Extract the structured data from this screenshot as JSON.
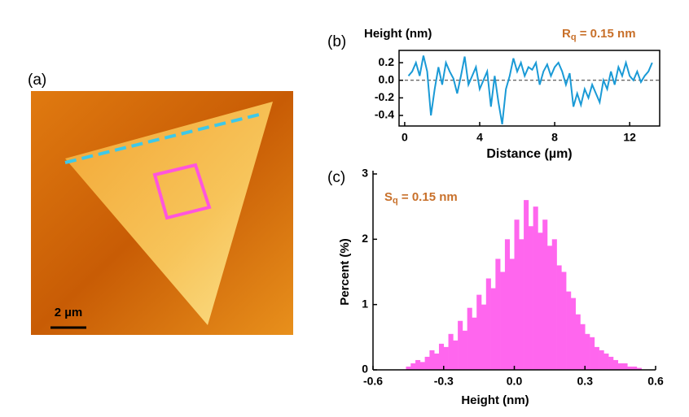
{
  "panel_a": {
    "label": "(a)",
    "scale_bar": "2 µm"
  },
  "chart_data": [
    {
      "type": "line",
      "panel": "(b)",
      "title": "Height (nm)",
      "x_label": "Distance (µm)",
      "annotation": {
        "symbol": "R",
        "subscript": "q",
        "text": " = 0.15 nm"
      },
      "color": "#1a9ad6",
      "reference_line": 0,
      "xlim": [
        -0.3,
        13.6
      ],
      "xticks": [
        0,
        4,
        8,
        12
      ],
      "ylim": [
        -0.52,
        0.34
      ],
      "yticks": [
        0.2,
        {
          "value": 0,
          "label": "0.0"
        },
        -0.2,
        -0.4
      ],
      "x": [
        0.2,
        0.4,
        0.6,
        0.8,
        1.0,
        1.2,
        1.4,
        1.6,
        1.8,
        2.0,
        2.2,
        2.4,
        2.6,
        2.8,
        3.0,
        3.2,
        3.4,
        3.6,
        3.8,
        4.0,
        4.2,
        4.4,
        4.6,
        4.8,
        5.0,
        5.2,
        5.4,
        5.6,
        5.8,
        6.0,
        6.2,
        6.4,
        6.6,
        6.8,
        7.0,
        7.2,
        7.4,
        7.6,
        7.8,
        8.0,
        8.2,
        8.4,
        8.6,
        8.8,
        9.0,
        9.2,
        9.4,
        9.6,
        9.8,
        10.0,
        10.2,
        10.4,
        10.6,
        10.8,
        11.0,
        11.2,
        11.4,
        11.6,
        11.8,
        12.0,
        12.2,
        12.4,
        12.6,
        12.8,
        13.0,
        13.2
      ],
      "values": [
        0.05,
        0.1,
        0.2,
        0.05,
        0.28,
        0.1,
        -0.4,
        -0.1,
        0.15,
        -0.05,
        0.2,
        0.1,
        0.02,
        -0.15,
        0.05,
        0.27,
        -0.05,
        0.05,
        0.15,
        -0.1,
        0.0,
        0.1,
        -0.3,
        0.05,
        -0.25,
        -0.5,
        -0.1,
        0.05,
        0.25,
        0.1,
        0.2,
        0.05,
        0.15,
        0.12,
        0.2,
        -0.05,
        0.1,
        0.18,
        0.05,
        0.15,
        0.2,
        0.1,
        -0.05,
        0.08,
        -0.3,
        -0.15,
        -0.28,
        -0.1,
        -0.2,
        -0.05,
        -0.15,
        -0.25,
        0.0,
        -0.1,
        0.1,
        -0.05,
        0.15,
        0.05,
        0.2,
        0.05,
        0.0,
        0.1,
        -0.02,
        0.05,
        0.1,
        0.2
      ]
    },
    {
      "type": "histogram",
      "panel": "(c)",
      "x_label": "Height (nm)",
      "y_label": "Percent (%)",
      "annotation": {
        "symbol": "S",
        "subscript": "q",
        "text": " = 0.15 nm"
      },
      "color": "#ff66ee",
      "xlim": [
        -0.6,
        0.6
      ],
      "xticks": [
        -0.6,
        -0.3,
        {
          "value": 0,
          "label": "0.0"
        },
        0.3,
        0.6
      ],
      "ylim": [
        0,
        3
      ],
      "yticks": [
        0,
        1,
        2,
        3
      ],
      "bins": [
        -0.46,
        -0.44,
        -0.42,
        -0.4,
        -0.38,
        -0.36,
        -0.34,
        -0.32,
        -0.3,
        -0.28,
        -0.26,
        -0.24,
        -0.22,
        -0.2,
        -0.18,
        -0.16,
        -0.14,
        -0.12,
        -0.1,
        -0.08,
        -0.06,
        -0.04,
        -0.02,
        0,
        0.02,
        0.04,
        0.06,
        0.08,
        0.1,
        0.12,
        0.14,
        0.16,
        0.18,
        0.2,
        0.22,
        0.24,
        0.26,
        0.28,
        0.3,
        0.32,
        0.34,
        0.36,
        0.38,
        0.4,
        0.42,
        0.44,
        0.46,
        0.48,
        0.5,
        0.52,
        0.54
      ],
      "values": [
        0.05,
        0.1,
        0.15,
        0.12,
        0.2,
        0.3,
        0.25,
        0.4,
        0.35,
        0.55,
        0.45,
        0.75,
        0.6,
        0.95,
        0.8,
        1.15,
        1.0,
        1.4,
        1.25,
        1.7,
        1.5,
        2.0,
        1.7,
        2.3,
        2.0,
        2.6,
        2.2,
        2.5,
        2.1,
        2.3,
        1.9,
        2.0,
        1.6,
        1.5,
        1.2,
        1.1,
        0.85,
        0.7,
        0.55,
        0.5,
        0.35,
        0.3,
        0.25,
        0.2,
        0.15,
        0.1,
        0.1,
        0.05,
        0.05,
        0.03
      ]
    }
  ]
}
